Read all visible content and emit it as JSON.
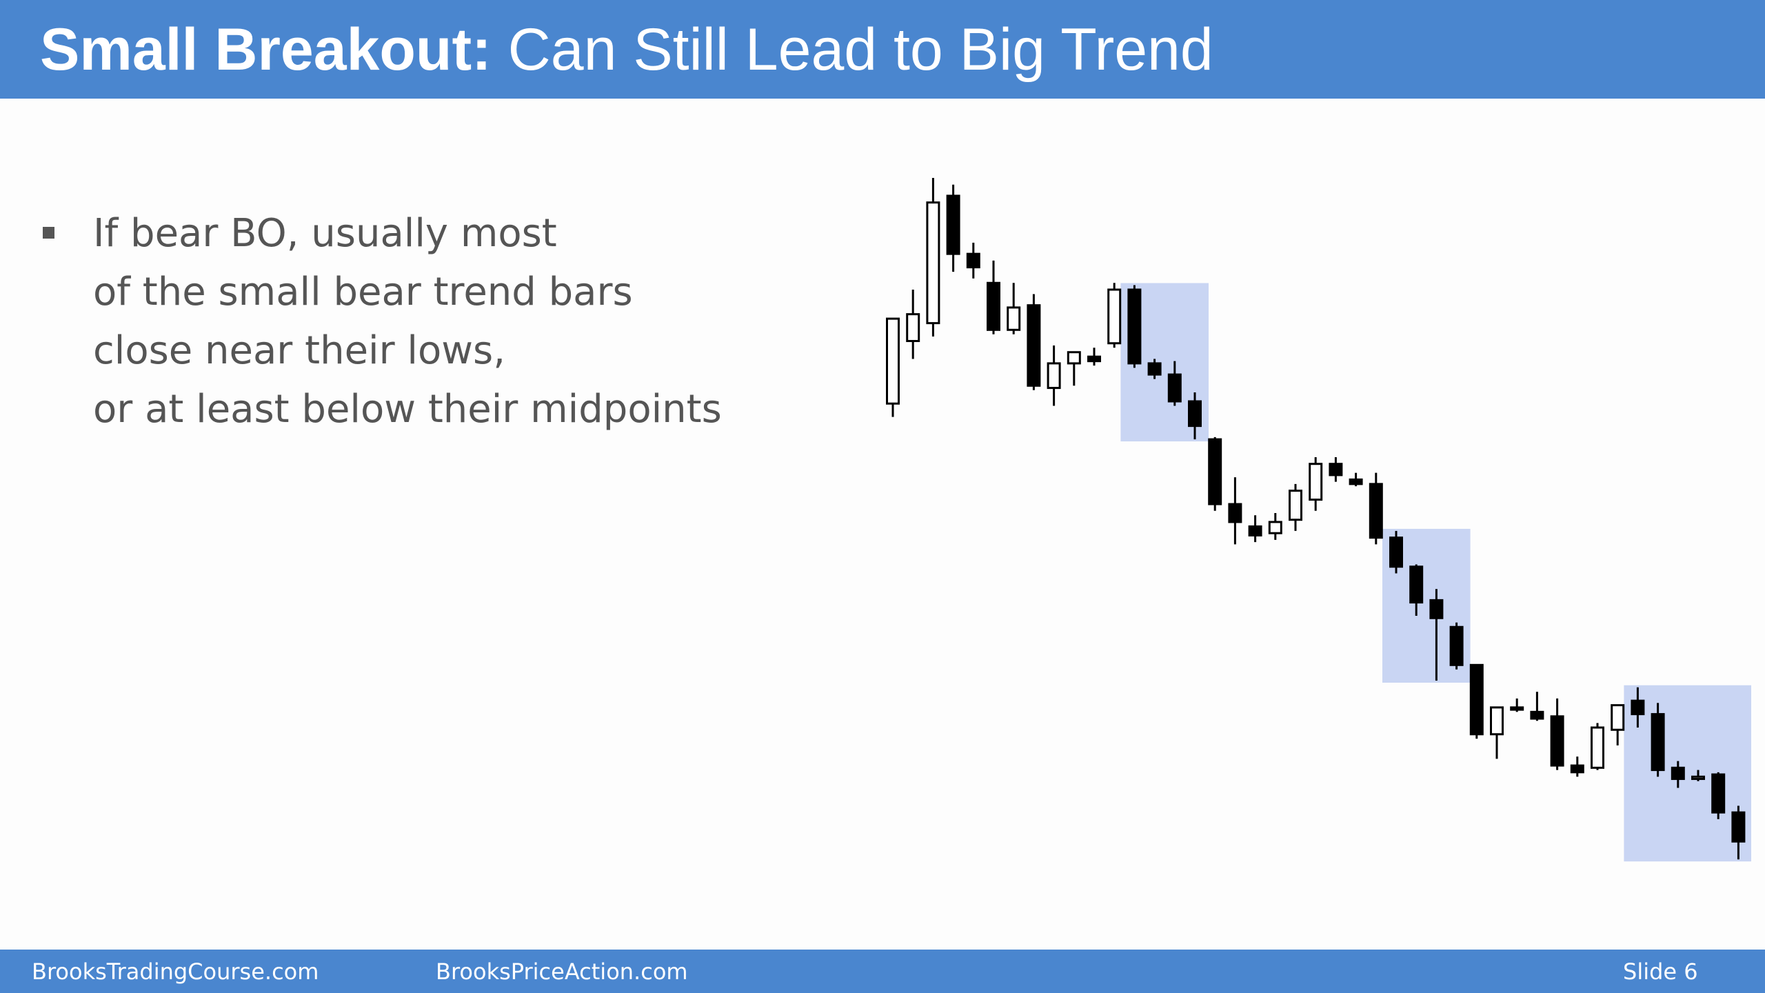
{
  "title": {
    "bold_part": "Small Breakout:",
    "rest_part": "Can Still Lead to Big Trend"
  },
  "bullets": [
    {
      "lines": [
        "If bear BO, usually most",
        "of the small bear trend bars",
        "close near their lows,",
        "or at least below their midpoints"
      ]
    }
  ],
  "footer": {
    "left": "BrooksTradingCourse.com",
    "middle": "BrooksPriceAction.com",
    "slide_label": "Slide  6"
  },
  "colors": {
    "header_bar": "#4a86cf",
    "highlight_box": "#c9d5f3",
    "bear_bar": "#000000",
    "bull_bar": "#ffffff",
    "bullet_text": "#555555"
  },
  "chart_data": {
    "type": "candlestick",
    "title": "",
    "xlabel": "",
    "ylabel": "",
    "axes_shown": false,
    "grid": false,
    "price_scale": "relative (no axis labels shown)",
    "bars": [
      {
        "o": 13.7,
        "h": 10.3,
        "l": 14.3,
        "c": 9.9
      },
      {
        "o": 10.9,
        "h": 8.6,
        "l": 11.7,
        "c": 9.7
      },
      {
        "o": 10.1,
        "h": 3.6,
        "l": 10.7,
        "c": 4.7
      },
      {
        "o": 4.4,
        "h": 3.9,
        "l": 7.8,
        "c": 7.0
      },
      {
        "o": 7.0,
        "h": 6.5,
        "l": 8.1,
        "c": 7.6
      },
      {
        "o": 8.3,
        "h": 7.3,
        "l": 10.6,
        "c": 10.4
      },
      {
        "o": 10.4,
        "h": 8.3,
        "l": 10.6,
        "c": 9.4
      },
      {
        "o": 9.3,
        "h": 8.8,
        "l": 13.1,
        "c": 12.9
      },
      {
        "o": 13.0,
        "h": 11.1,
        "l": 13.8,
        "c": 11.9
      },
      {
        "o": 11.9,
        "h": 11.4,
        "l": 12.9,
        "c": 11.4
      },
      {
        "o": 11.6,
        "h": 11.2,
        "l": 12.0,
        "c": 11.8
      },
      {
        "o": 11.0,
        "h": 8.3,
        "l": 11.2,
        "c": 8.6
      },
      {
        "o": 8.6,
        "h": 8.4,
        "l": 12.1,
        "c": 11.9
      },
      {
        "o": 11.9,
        "h": 11.7,
        "l": 12.6,
        "c": 12.4
      },
      {
        "o": 12.4,
        "h": 11.8,
        "l": 13.8,
        "c": 13.6
      },
      {
        "o": 13.6,
        "h": 13.2,
        "l": 15.3,
        "c": 14.7
      },
      {
        "o": 15.3,
        "h": 15.2,
        "l": 18.5,
        "c": 18.2
      },
      {
        "o": 18.2,
        "h": 17.0,
        "l": 20.0,
        "c": 19.0
      },
      {
        "o": 19.2,
        "h": 18.7,
        "l": 19.9,
        "c": 19.6
      },
      {
        "o": 19.5,
        "h": 18.6,
        "l": 19.8,
        "c": 19.0
      },
      {
        "o": 18.9,
        "h": 17.3,
        "l": 19.4,
        "c": 17.6
      },
      {
        "o": 18.0,
        "h": 16.1,
        "l": 18.5,
        "c": 16.4
      },
      {
        "o": 16.4,
        "h": 16.1,
        "l": 17.2,
        "c": 16.9
      },
      {
        "o": 17.1,
        "h": 16.8,
        "l": 17.4,
        "c": 17.3
      },
      {
        "o": 17.3,
        "h": 16.8,
        "l": 20.0,
        "c": 19.7
      },
      {
        "o": 19.7,
        "h": 19.4,
        "l": 21.3,
        "c": 21.0
      },
      {
        "o": 21.0,
        "h": 20.9,
        "l": 23.2,
        "c": 22.6
      },
      {
        "o": 22.5,
        "h": 22.0,
        "l": 26.1,
        "c": 23.3
      },
      {
        "o": 23.7,
        "h": 23.5,
        "l": 25.6,
        "c": 25.4
      },
      {
        "o": 25.4,
        "h": 25.4,
        "l": 28.7,
        "c": 28.5
      },
      {
        "o": 28.5,
        "h": 28.2,
        "l": 29.6,
        "c": 27.3
      },
      {
        "o": 27.3,
        "h": 26.9,
        "l": 27.5,
        "c": 27.4
      },
      {
        "o": 27.5,
        "h": 26.6,
        "l": 27.9,
        "c": 27.8
      },
      {
        "o": 27.7,
        "h": 26.9,
        "l": 30.1,
        "c": 29.9
      },
      {
        "o": 29.9,
        "h": 29.5,
        "l": 30.4,
        "c": 30.2
      },
      {
        "o": 30.0,
        "h": 28.0,
        "l": 30.1,
        "c": 28.2
      },
      {
        "o": 28.3,
        "h": 27.3,
        "l": 29.0,
        "c": 27.2
      },
      {
        "o": 27.0,
        "h": 26.4,
        "l": 28.2,
        "c": 27.6
      },
      {
        "o": 27.6,
        "h": 27.1,
        "l": 30.4,
        "c": 30.1
      },
      {
        "o": 30.0,
        "h": 29.7,
        "l": 30.9,
        "c": 30.5
      },
      {
        "o": 30.5,
        "h": 30.1,
        "l": 30.6,
        "c": 30.4
      },
      {
        "o": 30.3,
        "h": 30.2,
        "l": 32.3,
        "c": 32.0
      },
      {
        "o": 32.0,
        "h": 31.7,
        "l": 34.1,
        "c": 33.3
      }
    ],
    "highlighted_bar_ranges": [
      {
        "start": 12,
        "end": 15
      },
      {
        "start": 25,
        "end": 28
      },
      {
        "start": 37,
        "end": 42
      }
    ]
  }
}
